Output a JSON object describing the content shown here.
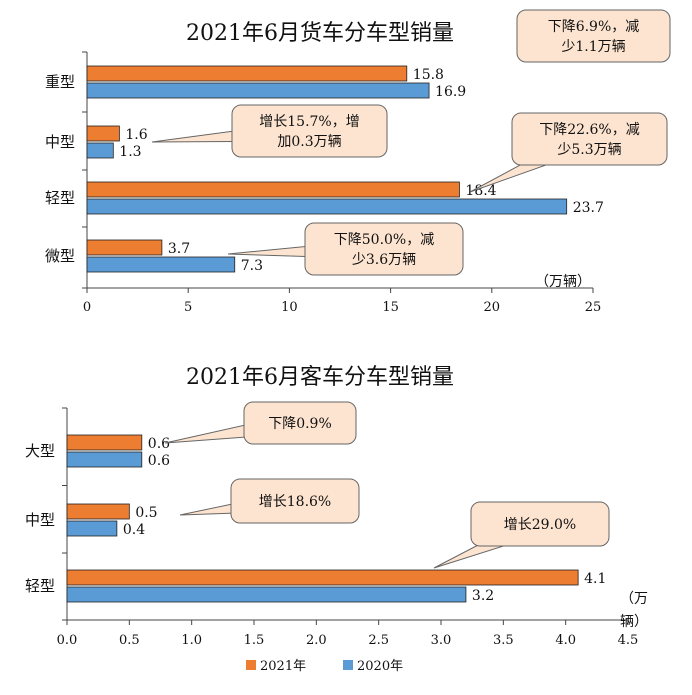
{
  "colors": {
    "y2021": "#ED7D31",
    "y2020": "#5B9BD5",
    "callout_fill": "#FCE4D0",
    "callout_stroke": "#666666"
  },
  "legend": {
    "y2021": "2021年",
    "y2020": "2020年"
  },
  "chart_data": [
    {
      "type": "bar",
      "orientation": "horizontal",
      "title": "2021年6月货车分车型销量",
      "unit_label": "（万辆）",
      "categories": [
        "重型",
        "中型",
        "轻型",
        "微型"
      ],
      "series": [
        {
          "name": "2021年",
          "values": [
            15.8,
            1.6,
            18.4,
            3.7
          ],
          "labels": [
            "15.8",
            "1.6",
            "18.4",
            "3.7"
          ]
        },
        {
          "name": "2020年",
          "values": [
            16.9,
            1.3,
            23.7,
            7.3
          ],
          "labels": [
            "16.9",
            "1.3",
            "23.7",
            "7.3"
          ]
        }
      ],
      "xlim": [
        0,
        25
      ],
      "xticks": [
        "0",
        "5",
        "10",
        "15",
        "20",
        "25"
      ],
      "annotations": [
        {
          "category": "重型",
          "lines": [
            "下降6.9%，减",
            "少1.1万辆"
          ]
        },
        {
          "category": "中型",
          "lines": [
            "增长15.7%，增",
            "加0.3万辆"
          ]
        },
        {
          "category": "轻型",
          "lines": [
            "下降22.6%，减",
            "少5.3万辆"
          ]
        },
        {
          "category": "微型",
          "lines": [
            "下降50.0%，减",
            "少3.6万辆"
          ]
        }
      ]
    },
    {
      "type": "bar",
      "orientation": "horizontal",
      "title": "2021年6月客车分车型销量",
      "unit_label_lines": [
        "（万",
        "辆）"
      ],
      "categories": [
        "大型",
        "中型",
        "轻型"
      ],
      "series": [
        {
          "name": "2021年",
          "values": [
            0.6,
            0.5,
            4.1
          ],
          "labels": [
            "0.6",
            "0.5",
            "4.1"
          ]
        },
        {
          "name": "2020年",
          "values": [
            0.6,
            0.4,
            3.2
          ],
          "labels": [
            "0.6",
            "0.4",
            "3.2"
          ]
        }
      ],
      "xlim": [
        0,
        4.5
      ],
      "xticks": [
        "0.0",
        "0.5",
        "1.0",
        "1.5",
        "2.0",
        "2.5",
        "3.0",
        "3.5",
        "4.0",
        "4.5"
      ],
      "annotations": [
        {
          "category": "大型",
          "lines": [
            "下降0.9%"
          ]
        },
        {
          "category": "中型",
          "lines": [
            "增长18.6%"
          ]
        },
        {
          "category": "轻型",
          "lines": [
            "增长29.0%"
          ]
        }
      ]
    }
  ]
}
